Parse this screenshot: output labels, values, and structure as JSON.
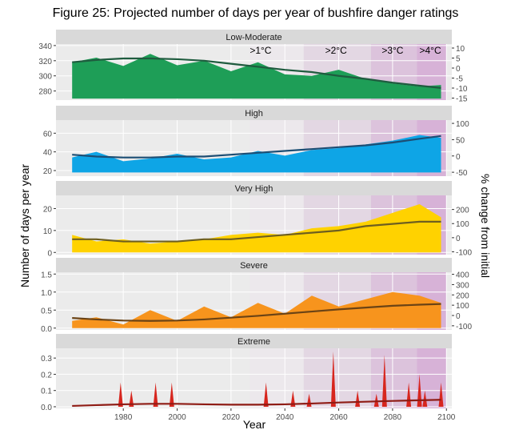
{
  "figure": {
    "title": "Figure 25: Projected number of days per year of bushfire danger ratings",
    "xlabel": "Year",
    "ylabel_left": "Number of days per year",
    "ylabel_right": "% change from initial"
  },
  "chart_data": [
    {
      "type": "area",
      "panel": "Low-Moderate",
      "color": "#1e9e57",
      "trend_color": "#1f5c3f",
      "xlim": [
        1955,
        2102
      ],
      "ylim": [
        268,
        342
      ],
      "yticks": [
        280,
        300,
        320,
        340
      ],
      "base": 270,
      "rlim": [
        -16,
        12
      ],
      "rticks": [
        -15,
        -10,
        -5,
        0,
        5,
        10
      ],
      "x": [
        1961,
        1970,
        1980,
        1990,
        2000,
        2010,
        2020,
        2030,
        2040,
        2050,
        2060,
        2070,
        2080,
        2090,
        2098
      ],
      "y": [
        318,
        324,
        313,
        329,
        314,
        320,
        306,
        318,
        302,
        300,
        308,
        296,
        290,
        286,
        288
      ],
      "trend": [
        318,
        321,
        323,
        323,
        322,
        320,
        316,
        312,
        308,
        305,
        300,
        296,
        291,
        287,
        284
      ],
      "warming_labels": [
        ">1°C",
        ">2°C",
        ">3°C",
        ">4°C"
      ]
    },
    {
      "type": "area",
      "panel": "High",
      "color": "#0ea5e6",
      "trend_color": "#1d4e74",
      "xlim": [
        1955,
        2102
      ],
      "ylim": [
        14,
        74
      ],
      "yticks": [
        20,
        40,
        60
      ],
      "base": 18,
      "rlim": [
        -62,
        110
      ],
      "rticks": [
        -50,
        0,
        50,
        100
      ],
      "x": [
        1961,
        1970,
        1980,
        1990,
        2000,
        2010,
        2020,
        2030,
        2040,
        2050,
        2060,
        2070,
        2080,
        2090,
        2098
      ],
      "y": [
        34,
        40,
        30,
        33,
        38,
        32,
        34,
        41,
        36,
        42,
        44,
        48,
        52,
        58,
        55
      ],
      "trend": [
        37,
        35,
        34,
        34,
        35,
        35,
        37,
        39,
        41,
        43,
        45,
        47,
        50,
        54,
        57
      ]
    },
    {
      "type": "area",
      "panel": "Very High",
      "color": "#ffd200",
      "trend_color": "#6e5f20",
      "xlim": [
        1955,
        2102
      ],
      "ylim": [
        -1,
        26
      ],
      "yticks": [
        0,
        10,
        20
      ],
      "base": 0,
      "rlim": [
        -120,
        300
      ],
      "rticks": [
        -100,
        0,
        100,
        200
      ],
      "x": [
        1961,
        1970,
        1980,
        1990,
        2000,
        2010,
        2020,
        2030,
        2040,
        2050,
        2060,
        2070,
        2080,
        2090,
        2098
      ],
      "y": [
        8,
        5,
        6,
        4,
        5,
        6,
        8,
        9,
        8,
        11,
        12,
        14,
        18,
        22,
        16
      ],
      "trend": [
        6,
        6,
        5,
        5,
        5,
        6,
        6,
        7,
        8,
        9,
        10,
        12,
        13,
        14,
        14
      ]
    },
    {
      "type": "area",
      "panel": "Severe",
      "color": "#f7941d",
      "trend_color": "#6b4315",
      "xlim": [
        1955,
        2102
      ],
      "ylim": [
        -0.05,
        1.55
      ],
      "yticks": [
        0.0,
        0.5,
        1.0,
        1.5
      ],
      "base": 0,
      "rlim": [
        -140,
        420
      ],
      "rticks": [
        -100,
        0,
        100,
        200,
        300,
        400
      ],
      "x": [
        1961,
        1970,
        1980,
        1990,
        2000,
        2010,
        2020,
        2030,
        2040,
        2050,
        2060,
        2070,
        2080,
        2090,
        2098
      ],
      "y": [
        0.2,
        0.3,
        0.1,
        0.5,
        0.2,
        0.6,
        0.3,
        0.7,
        0.4,
        0.9,
        0.6,
        0.8,
        1.0,
        0.9,
        0.7
      ],
      "trend": [
        0.28,
        0.24,
        0.21,
        0.2,
        0.21,
        0.24,
        0.29,
        0.34,
        0.4,
        0.46,
        0.52,
        0.57,
        0.62,
        0.65,
        0.67
      ],
      "tick_format": "fixed1"
    },
    {
      "type": "area",
      "panel": "Extreme",
      "color": "#d7261e",
      "trend_color": "#8f1c15",
      "xlim": [
        1955,
        2102
      ],
      "ylim": [
        -0.01,
        0.36
      ],
      "yticks": [
        0.0,
        0.1,
        0.2,
        0.3
      ],
      "base": 0,
      "x": [
        1979,
        1983,
        1992,
        1998,
        2033,
        2043,
        2049,
        2058,
        2067,
        2074,
        2077,
        2086,
        2090,
        2092,
        2098
      ],
      "y": [
        0.15,
        0.1,
        0.15,
        0.15,
        0.15,
        0.1,
        0.08,
        0.34,
        0.1,
        0.08,
        0.32,
        0.15,
        0.2,
        0.1,
        0.15
      ],
      "trend_x": [
        1961,
        1970,
        1980,
        1990,
        2000,
        2010,
        2020,
        2030,
        2040,
        2050,
        2060,
        2070,
        2080,
        2090,
        2098
      ],
      "trend": [
        0.005,
        0.01,
        0.015,
        0.018,
        0.018,
        0.015,
        0.013,
        0.013,
        0.015,
        0.02,
        0.026,
        0.031,
        0.036,
        0.04,
        0.043
      ],
      "tick_format": "fixed1",
      "xticks": [
        1980,
        2000,
        2020,
        2040,
        2060,
        2080,
        2100
      ]
    }
  ],
  "warming_periods": [
    {
      "label": ">1°C",
      "start": 2027,
      "end": 2047,
      "color": "#ece8ec"
    },
    {
      "label": ">2°C",
      "start": 2047,
      "end": 2072,
      "color": "#e2d4e2"
    },
    {
      "label": ">3°C",
      "start": 2072,
      "end": 2089,
      "color": "#d9bcd9"
    },
    {
      "label": ">4°C",
      "start": 2089,
      "end": 2100,
      "color": "#d4a8d4"
    }
  ]
}
